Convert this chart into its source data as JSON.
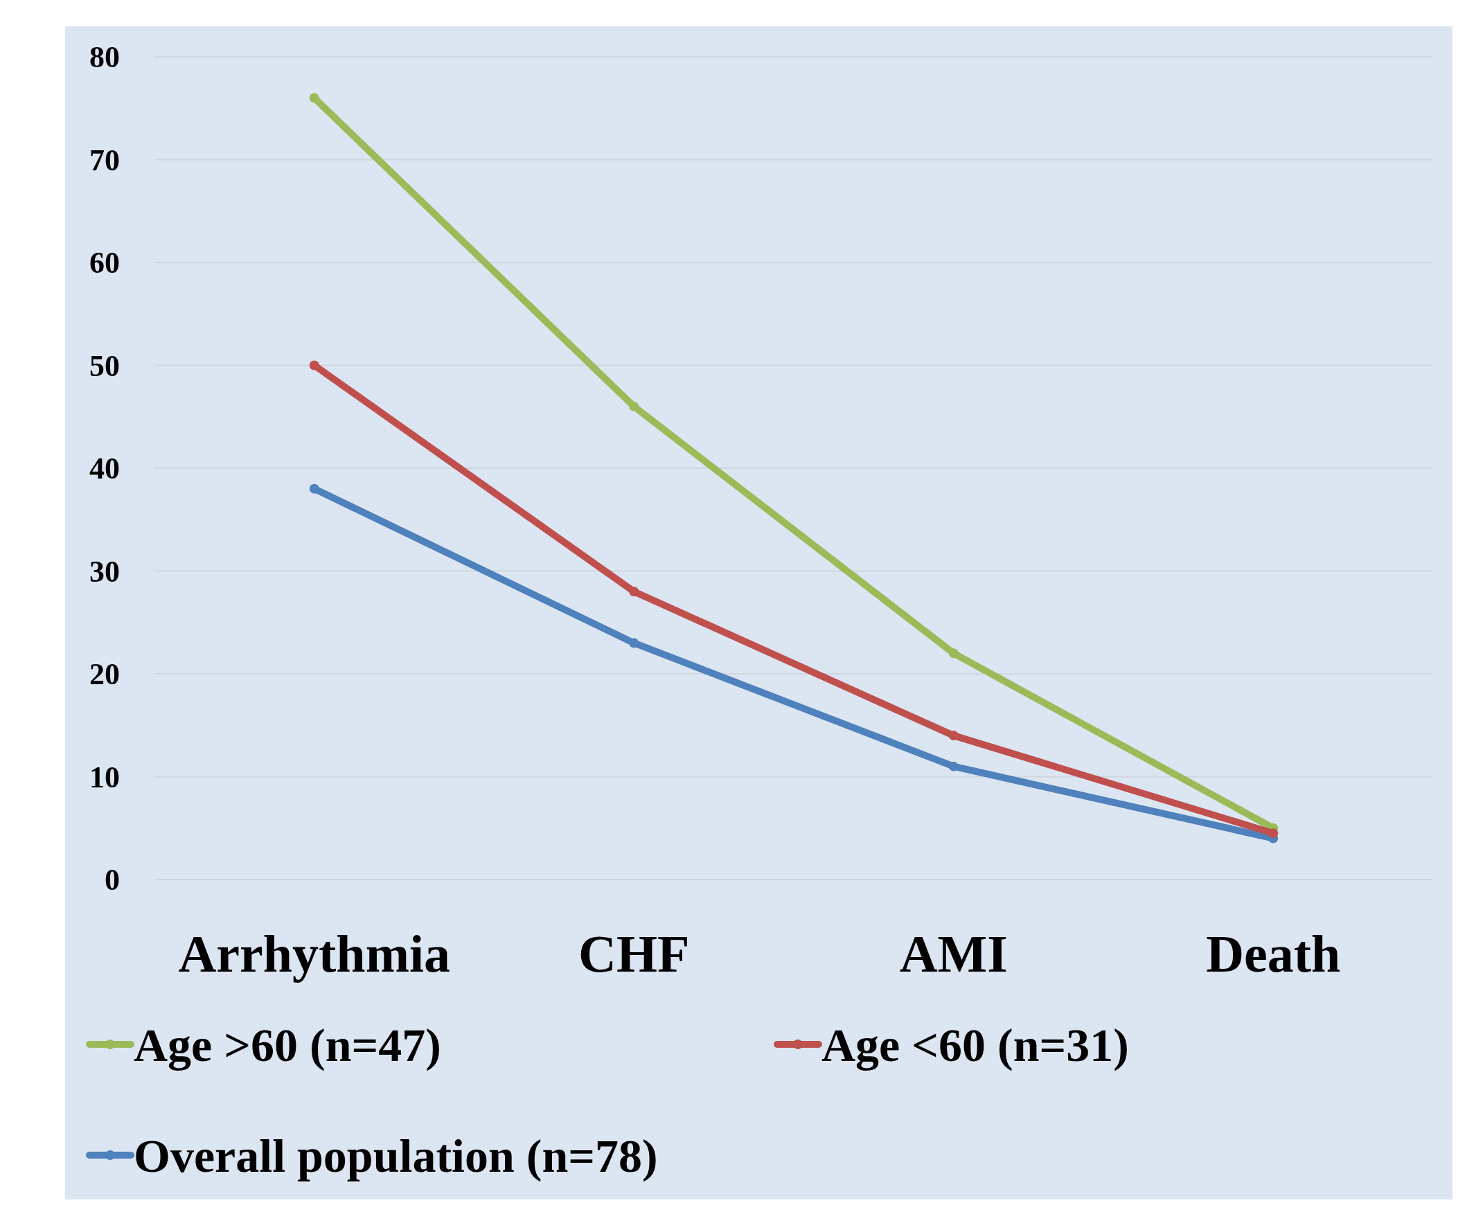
{
  "chart_data": {
    "type": "line",
    "categories": [
      "Arrhythmia",
      "CHF",
      "AMI",
      "Death"
    ],
    "series": [
      {
        "name": "Age >60 (n=47)",
        "color": "#9bbb59",
        "values": [
          76,
          46,
          22,
          5
        ]
      },
      {
        "name": "Age <60 (n=31)",
        "color": "#c0504d",
        "values": [
          50,
          28,
          14,
          4.5
        ]
      },
      {
        "name": "Overall population (n=78)",
        "color": "#4f81bd",
        "values": [
          38,
          23,
          11,
          4
        ]
      }
    ],
    "ylim": [
      0,
      80
    ],
    "yticks": [
      0,
      10,
      20,
      30,
      40,
      50,
      60,
      70,
      80
    ],
    "grid": "y",
    "legend": "bottom",
    "marker": "circle",
    "line_style": "solid"
  }
}
